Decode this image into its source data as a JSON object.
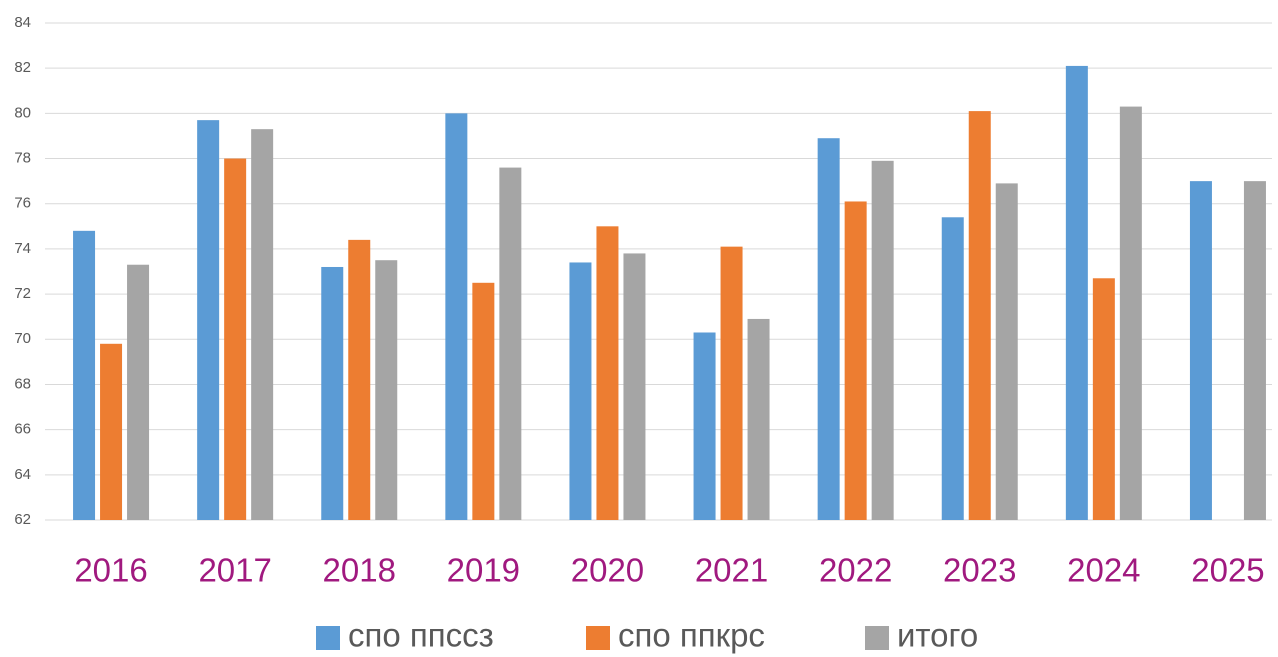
{
  "chart_data": {
    "type": "bar",
    "categories": [
      "2016",
      "2017",
      "2018",
      "2019",
      "2020",
      "2021",
      "2022",
      "2023",
      "2024",
      "2025"
    ],
    "series": [
      {
        "name": "спо ппссз",
        "color": "#5b9bd5",
        "values": [
          74.8,
          79.7,
          73.2,
          80.0,
          73.4,
          70.3,
          78.9,
          75.4,
          82.1,
          77.0
        ]
      },
      {
        "name": "спо ппкрс",
        "color": "#ed7d31",
        "values": [
          69.8,
          78.0,
          74.4,
          72.5,
          75.0,
          74.1,
          76.1,
          80.1,
          72.7,
          null
        ]
      },
      {
        "name": "итого",
        "color": "#a5a5a5",
        "values": [
          73.3,
          79.3,
          73.5,
          77.6,
          73.8,
          70.9,
          77.9,
          76.9,
          80.3,
          77.0
        ]
      }
    ],
    "ylim": [
      62,
      84
    ],
    "yticks": [
      62,
      64,
      66,
      68,
      70,
      72,
      74,
      76,
      78,
      80,
      82,
      84
    ],
    "grid": true,
    "legend": "bottom"
  }
}
